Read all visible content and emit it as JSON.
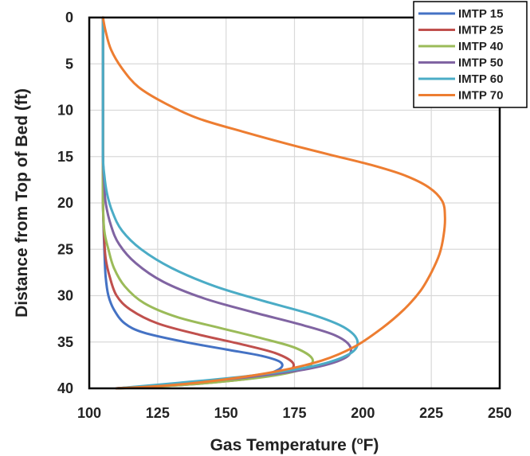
{
  "chart_data": {
    "type": "line",
    "xlabel_main": "Gas Temperature (",
    "xlabel_sup": "o",
    "xlabel_end": "F)",
    "ylabel": "Distance from Top of Bed (ft)",
    "xlim": [
      100,
      250
    ],
    "ylim": [
      0,
      40
    ],
    "y_inverted": true,
    "x_ticks": [
      100,
      125,
      150,
      175,
      200,
      225,
      250
    ],
    "y_ticks": [
      0,
      5,
      10,
      15,
      20,
      25,
      30,
      35,
      40
    ],
    "grid": true,
    "legend_position": "top-right",
    "series": [
      {
        "name": "IMTP 15",
        "color": "#4472C4",
        "points": [
          [
            105,
            0
          ],
          [
            105,
            5
          ],
          [
            105,
            10
          ],
          [
            105,
            15
          ],
          [
            105,
            20
          ],
          [
            105.5,
            25
          ],
          [
            106,
            28
          ],
          [
            107,
            30
          ],
          [
            109,
            31.5
          ],
          [
            113,
            33
          ],
          [
            120,
            34
          ],
          [
            135,
            35
          ],
          [
            150,
            35.8
          ],
          [
            163,
            36.5
          ],
          [
            170,
            37.2
          ],
          [
            169,
            38
          ],
          [
            160,
            38.8
          ],
          [
            140,
            39.4
          ],
          [
            120,
            39.8
          ],
          [
            110,
            40
          ]
        ]
      },
      {
        "name": "IMTP 25",
        "color": "#C0504D",
        "points": [
          [
            105,
            0
          ],
          [
            105,
            5
          ],
          [
            105,
            10
          ],
          [
            105,
            15
          ],
          [
            105,
            20
          ],
          [
            105.5,
            24
          ],
          [
            106,
            26
          ],
          [
            107.5,
            28
          ],
          [
            110,
            30
          ],
          [
            115,
            31.5
          ],
          [
            125,
            33
          ],
          [
            140,
            34.2
          ],
          [
            155,
            35.2
          ],
          [
            168,
            36.2
          ],
          [
            174.5,
            37.3
          ],
          [
            172,
            38.2
          ],
          [
            160,
            38.9
          ],
          [
            140,
            39.5
          ],
          [
            120,
            39.85
          ],
          [
            110,
            40
          ]
        ]
      },
      {
        "name": "IMTP 40",
        "color": "#9BBB59",
        "points": [
          [
            105,
            0
          ],
          [
            105,
            5
          ],
          [
            105,
            10
          ],
          [
            105,
            15
          ],
          [
            105,
            20
          ],
          [
            105.5,
            23
          ],
          [
            107,
            25
          ],
          [
            109,
            27
          ],
          [
            113,
            29
          ],
          [
            120,
            30.8
          ],
          [
            132,
            32.3
          ],
          [
            148,
            33.5
          ],
          [
            163,
            34.6
          ],
          [
            175,
            35.6
          ],
          [
            181.5,
            36.8
          ],
          [
            179,
            37.8
          ],
          [
            168,
            38.6
          ],
          [
            148,
            39.3
          ],
          [
            125,
            39.8
          ],
          [
            110,
            40
          ]
        ]
      },
      {
        "name": "IMTP 50",
        "color": "#8064A2",
        "points": [
          [
            105,
            0
          ],
          [
            105,
            5
          ],
          [
            105,
            10
          ],
          [
            105,
            15
          ],
          [
            105.5,
            18
          ],
          [
            106,
            20
          ],
          [
            108,
            22.5
          ],
          [
            111,
            24.5
          ],
          [
            117,
            26.5
          ],
          [
            127,
            28.5
          ],
          [
            142,
            30.3
          ],
          [
            160,
            31.8
          ],
          [
            177,
            33.1
          ],
          [
            190,
            34.3
          ],
          [
            195.5,
            35.6
          ],
          [
            193,
            36.8
          ],
          [
            180,
            37.9
          ],
          [
            158,
            38.8
          ],
          [
            132,
            39.5
          ],
          [
            110,
            40
          ]
        ]
      },
      {
        "name": "IMTP 60",
        "color": "#4BACC6",
        "points": [
          [
            105,
            0
          ],
          [
            105,
            5
          ],
          [
            105,
            10
          ],
          [
            105,
            15
          ],
          [
            105.5,
            17
          ],
          [
            106.5,
            19
          ],
          [
            108.5,
            21
          ],
          [
            112,
            23
          ],
          [
            119,
            25
          ],
          [
            130,
            27
          ],
          [
            146,
            29
          ],
          [
            164,
            30.6
          ],
          [
            181,
            32
          ],
          [
            193,
            33.4
          ],
          [
            198,
            34.9
          ],
          [
            195,
            36.3
          ],
          [
            182,
            37.6
          ],
          [
            160,
            38.6
          ],
          [
            133,
            39.4
          ],
          [
            110,
            40
          ]
        ]
      },
      {
        "name": "IMTP 70",
        "color": "#ED7D31",
        "points": [
          [
            105,
            0
          ],
          [
            106,
            1.5
          ],
          [
            108,
            3.5
          ],
          [
            112,
            5.5
          ],
          [
            118,
            7.5
          ],
          [
            128,
            9.3
          ],
          [
            140,
            10.9
          ],
          [
            156,
            12.3
          ],
          [
            172,
            13.6
          ],
          [
            188,
            14.8
          ],
          [
            203,
            15.9
          ],
          [
            215,
            17
          ],
          [
            224,
            18.3
          ],
          [
            229,
            19.8
          ],
          [
            230,
            21.5
          ],
          [
            229.5,
            23.5
          ],
          [
            228,
            25.5
          ],
          [
            225,
            27.5
          ],
          [
            221,
            29.5
          ],
          [
            215,
            31.5
          ],
          [
            207,
            33.5
          ],
          [
            197,
            35.5
          ],
          [
            185,
            37
          ],
          [
            168,
            38.2
          ],
          [
            148,
            39.1
          ],
          [
            128,
            39.7
          ],
          [
            110,
            40
          ]
        ]
      }
    ]
  }
}
